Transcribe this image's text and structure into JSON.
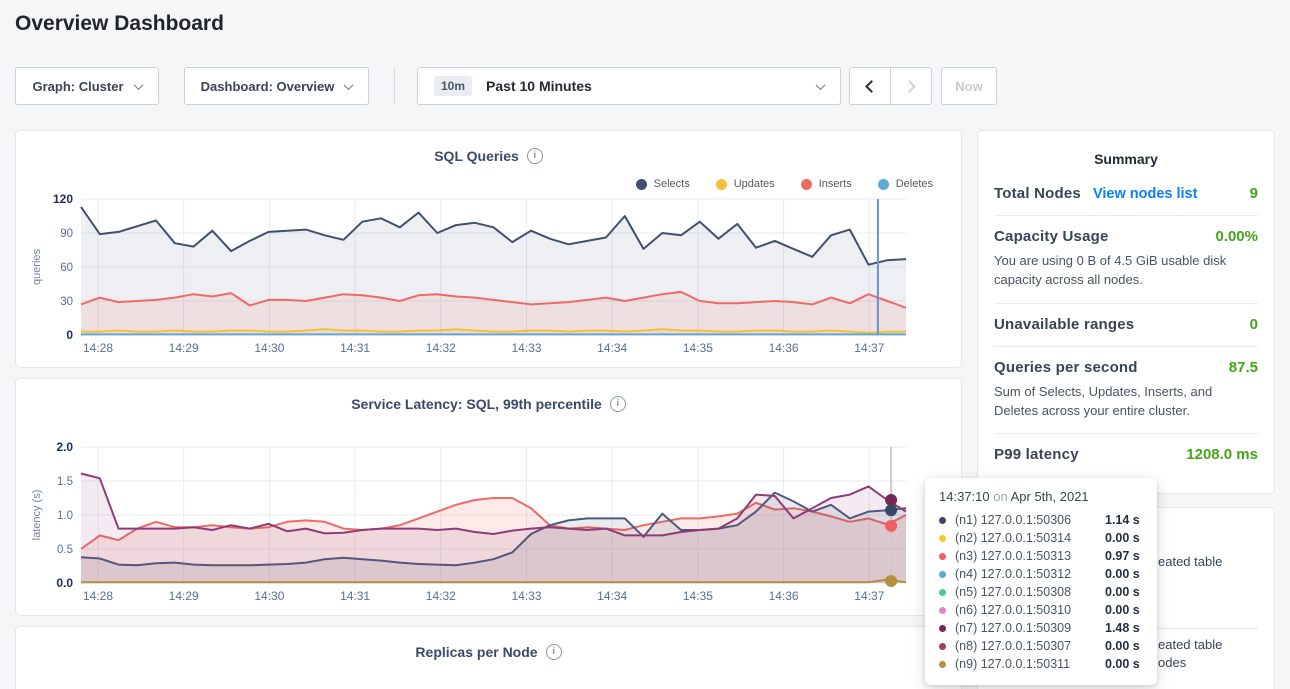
{
  "page": {
    "title": "Overview Dashboard"
  },
  "controls": {
    "graph_dropdown": "Graph: Cluster",
    "dashboard_dropdown": "Dashboard: Overview",
    "time_badge": "10m",
    "time_label": "Past 10 Minutes",
    "now_label": "Now"
  },
  "summary": {
    "heading": "Summary",
    "total_nodes": {
      "label": "Total Nodes",
      "link": "View nodes list",
      "value": "9"
    },
    "capacity": {
      "label": "Capacity Usage",
      "value": "0.00%",
      "desc": "You are using 0 B of 4.5 GiB usable disk capacity across all nodes."
    },
    "unavailable": {
      "label": "Unavailable ranges",
      "value": "0"
    },
    "qps": {
      "label": "Queries per second",
      "value": "87.5",
      "desc": "Sum of Selects, Updates, Inserts, and Deletes across your entire cluster."
    },
    "p99": {
      "label": "P99 latency",
      "value": "1208.0 ms"
    },
    "value_color": "#46a417",
    "link_color": "#0b7ff7"
  },
  "events": {
    "item1_line1": "eated table",
    "item2_line1": "eated table",
    "item2_line2": "odes"
  },
  "tooltip": {
    "time": "14:37:10",
    "preposition": "on",
    "date": "Apr 5th, 2021",
    "rows": [
      {
        "color": "#3b4864",
        "label": "(n1) 127.0.0.1:50306",
        "value": "1.14 s"
      },
      {
        "color": "#f7c52f",
        "label": "(n2) 127.0.0.1:50314",
        "value": "0.00 s"
      },
      {
        "color": "#ef5e63",
        "label": "(n3) 127.0.0.1:50313",
        "value": "0.97 s"
      },
      {
        "color": "#5aa6de",
        "label": "(n4) 127.0.0.1:50312",
        "value": "0.00 s"
      },
      {
        "color": "#47cc8a",
        "label": "(n5) 127.0.0.1:50308",
        "value": "0.00 s"
      },
      {
        "color": "#e287c6",
        "label": "(n6) 127.0.0.1:50310",
        "value": "0.00 s"
      },
      {
        "color": "#7a2558",
        "label": "(n7) 127.0.0.1:50309",
        "value": "1.48 s"
      },
      {
        "color": "#a43d56",
        "label": "(n8) 127.0.0.1:50307",
        "value": "0.00 s"
      },
      {
        "color": "#b3913f",
        "label": "(n9) 127.0.0.1:50311",
        "value": "0.00 s"
      }
    ]
  },
  "chart_data": [
    {
      "id": "sql-queries",
      "type": "line",
      "title": "SQL Queries",
      "ylabel": "queries",
      "ylim": [
        0,
        120
      ],
      "yticks": [
        0,
        30,
        60,
        90,
        120
      ],
      "ytick_labels": [
        "0",
        "30",
        "60",
        "90",
        "120"
      ],
      "xticks": [
        "14:28",
        "14:29",
        "14:30",
        "14:31",
        "14:32",
        "14:33",
        "14:34",
        "14:35",
        "14:36",
        "14:37"
      ],
      "grid": true,
      "legend_position": "top-right",
      "legend": [
        {
          "name": "Selects",
          "color": "#41506e"
        },
        {
          "name": "Updates",
          "color": "#f8bf38"
        },
        {
          "name": "Inserts",
          "color": "#ee6a67"
        },
        {
          "name": "Deletes",
          "color": "#5ea8dc"
        }
      ],
      "hover_x_frac": 0.966,
      "hover_line_color": "#6c8fd5",
      "series": [
        {
          "name": "Selects",
          "color": "#41506e",
          "fill": "rgba(65,80,110,0.09)",
          "values": [
            113,
            89,
            91,
            96,
            101,
            81,
            78,
            92,
            74,
            83,
            91,
            92,
            93,
            88,
            84,
            100,
            103,
            95,
            108,
            90,
            97,
            99,
            95,
            82,
            92,
            85,
            80,
            83,
            86,
            105,
            76,
            90,
            88,
            100,
            85,
            98,
            77,
            83,
            76,
            69,
            88,
            93,
            62,
            66,
            67
          ]
        },
        {
          "name": "Inserts",
          "color": "#ee6a67",
          "fill": "rgba(238,106,103,0.12)",
          "values": [
            27,
            33,
            29,
            30,
            31,
            33,
            36,
            34,
            37,
            26,
            31,
            31,
            30,
            33,
            36,
            35,
            33,
            30,
            35,
            36,
            34,
            33,
            31,
            29,
            27,
            28,
            29,
            31,
            33,
            30,
            33,
            36,
            38,
            30,
            28,
            28,
            29,
            30,
            29,
            27,
            33,
            28,
            36,
            30,
            24
          ]
        },
        {
          "name": "Updates",
          "color": "#f8bf38",
          "fill": "rgba(248,191,56,0.10)",
          "values": [
            3,
            3,
            4,
            3,
            3,
            4,
            3,
            3,
            4,
            4,
            3,
            3,
            4,
            5,
            4,
            4,
            3,
            3,
            4,
            4,
            5,
            4,
            3,
            3,
            4,
            4,
            3,
            4,
            4,
            3,
            4,
            5,
            4,
            4,
            3,
            3,
            4,
            4,
            3,
            3,
            4,
            3,
            2,
            3,
            3
          ]
        },
        {
          "name": "Deletes",
          "color": "#5ea8dc",
          "fill": "rgba(94,168,220,0.08)",
          "values": [
            0.5,
            0.5,
            0.5,
            0.5,
            0.5,
            0.5,
            0.5,
            0.5,
            0.5,
            0.5,
            0.5,
            0.5,
            0.5,
            0.5,
            0.5,
            0.5,
            0.5,
            0.5,
            0.5,
            0.5,
            0.5,
            0.5,
            0.5,
            0.5,
            0.5,
            0.5,
            0.5,
            0.5,
            0.5,
            0.5,
            0.5,
            0.5,
            0.5,
            0.5,
            0.5,
            0.5,
            0.5,
            0.5,
            0.5,
            0.5,
            0.5,
            0.5,
            0.5,
            0.5,
            0.5
          ]
        }
      ]
    },
    {
      "id": "service-latency",
      "type": "line",
      "title": "Service Latency: SQL, 99th percentile",
      "ylabel": "latency (s)",
      "ylim": [
        0,
        2.0
      ],
      "yticks": [
        0,
        0.5,
        1.0,
        1.5,
        2.0
      ],
      "ytick_labels": [
        "0.0",
        "0.5",
        "1.0",
        "1.5",
        "2.0"
      ],
      "xticks": [
        "14:28",
        "14:29",
        "14:30",
        "14:31",
        "14:32",
        "14:33",
        "14:34",
        "14:35",
        "14:36",
        "14:37"
      ],
      "grid": true,
      "hover_x_frac": 0.982,
      "hover_line_color": "#c7cad1",
      "hover_dots": [
        {
          "color": "#7a2558",
          "value": 1.22
        },
        {
          "color": "#3b4864",
          "value": 1.07
        },
        {
          "color": "#ef5e63",
          "value": 0.84
        },
        {
          "color": "#b3913f",
          "value": 0.03
        }
      ],
      "series": [
        {
          "name": "(n3) 127.0.0.1:50313",
          "color": "#ee6a67",
          "fill": "rgba(238,106,103,0.15)",
          "values": [
            0.5,
            0.7,
            0.63,
            0.8,
            0.9,
            0.82,
            0.82,
            0.85,
            0.82,
            0.8,
            0.82,
            0.9,
            0.92,
            0.9,
            0.8,
            0.78,
            0.8,
            0.85,
            0.95,
            1.05,
            1.15,
            1.22,
            1.25,
            1.25,
            1.1,
            0.85,
            0.8,
            0.82,
            0.8,
            0.78,
            0.85,
            0.9,
            0.95,
            0.95,
            0.98,
            1.02,
            1.18,
            1.08,
            1.1,
            1.05,
            0.98,
            0.9,
            0.95,
            0.86,
            1.0
          ]
        },
        {
          "name": "(n1) 127.0.0.1:50306",
          "color": "#4c5b7c",
          "fill": "rgba(76,91,124,0.12)",
          "values": [
            0.38,
            0.36,
            0.27,
            0.26,
            0.29,
            0.3,
            0.27,
            0.26,
            0.26,
            0.26,
            0.27,
            0.28,
            0.3,
            0.35,
            0.37,
            0.35,
            0.33,
            0.3,
            0.28,
            0.27,
            0.26,
            0.3,
            0.35,
            0.45,
            0.72,
            0.85,
            0.92,
            0.95,
            0.95,
            0.95,
            0.68,
            1.02,
            0.78,
            0.78,
            0.8,
            0.85,
            1.05,
            1.33,
            1.2,
            1.05,
            1.15,
            0.95,
            1.05,
            1.07,
            1.1
          ]
        },
        {
          "name": "(n7) 127.0.0.1:50309",
          "color": "#8e3c77",
          "fill": "rgba(142,60,119,0.10)",
          "values": [
            1.61,
            1.54,
            0.8,
            0.8,
            0.8,
            0.8,
            0.82,
            0.78,
            0.85,
            0.8,
            0.87,
            0.76,
            0.8,
            0.73,
            0.74,
            0.78,
            0.8,
            0.8,
            0.8,
            0.78,
            0.8,
            0.75,
            0.72,
            0.77,
            0.8,
            0.82,
            0.8,
            0.78,
            0.8,
            0.7,
            0.7,
            0.7,
            0.75,
            0.78,
            0.8,
            0.95,
            1.3,
            1.28,
            0.95,
            1.1,
            1.25,
            1.3,
            1.42,
            1.22,
            1.05
          ]
        },
        {
          "name": "(n9) 127.0.0.1:50311",
          "color": "#b3913f",
          "fill": "rgba(179,145,63,0.0)",
          "values": [
            0.01,
            0.01,
            0.01,
            0.01,
            0.01,
            0.01,
            0.01,
            0.01,
            0.01,
            0.01,
            0.01,
            0.01,
            0.01,
            0.01,
            0.01,
            0.01,
            0.01,
            0.01,
            0.01,
            0.01,
            0.01,
            0.01,
            0.01,
            0.01,
            0.01,
            0.01,
            0.01,
            0.01,
            0.01,
            0.01,
            0.01,
            0.01,
            0.01,
            0.01,
            0.01,
            0.01,
            0.01,
            0.01,
            0.01,
            0.01,
            0.01,
            0.01,
            0.01,
            0.05,
            0.01
          ]
        }
      ]
    },
    {
      "id": "replicas-per-node",
      "type": "line",
      "title": "Replicas per Node"
    }
  ]
}
